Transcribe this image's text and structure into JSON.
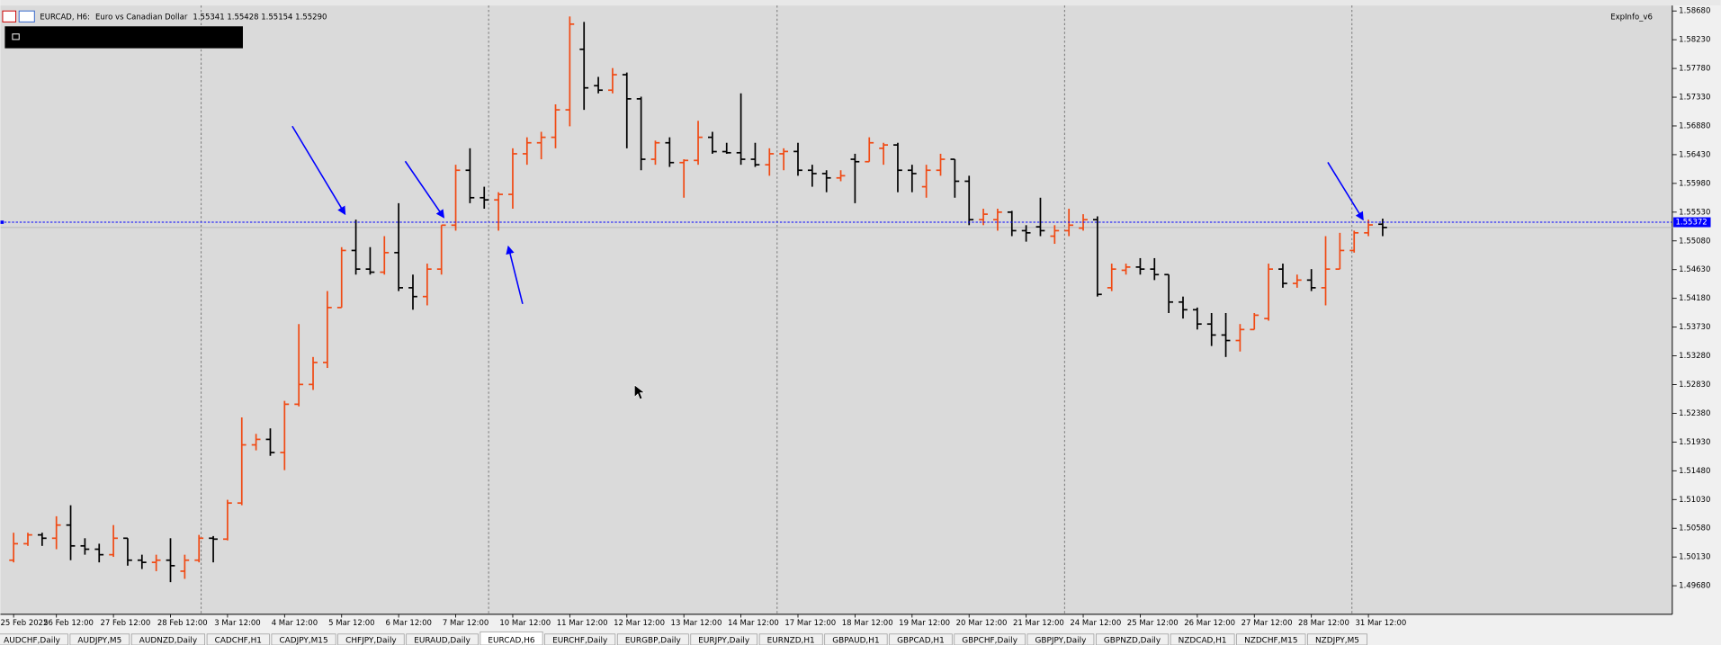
{
  "header": {
    "symbol": "EURCAD, H6:",
    "description": "Euro vs Canadian Dollar",
    "quote": "1.55341 1.55428 1.55154 1.55290",
    "indicator": "ExpInfo_v6"
  },
  "chart_data": {
    "type": "ohlc",
    "categories": [
      "25 Feb 2025",
      null,
      null,
      "26 Feb 12:00",
      null,
      null,
      null,
      "27 Feb 12:00",
      null,
      null,
      null,
      "28 Feb 12:00",
      null,
      null,
      null,
      "3 Mar 12:00",
      null,
      null,
      null,
      "4 Mar 12:00",
      null,
      null,
      null,
      "5 Mar 12:00",
      null,
      null,
      null,
      "6 Mar 12:00",
      null,
      null,
      null,
      "7 Mar 12:00",
      null,
      null,
      null,
      "10 Mar 12:00",
      null,
      null,
      null,
      "11 Mar 12:00",
      null,
      null,
      null,
      "12 Mar 12:00",
      null,
      null,
      null,
      "13 Mar 12:00",
      null,
      null,
      null,
      "14 Mar 12:00",
      null,
      null,
      null,
      "17 Mar 12:00",
      null,
      null,
      null,
      "18 Mar 12:00",
      null,
      null,
      null,
      "19 Mar 12:00",
      null,
      null,
      null,
      "20 Mar 12:00",
      null,
      null,
      null,
      "21 Mar 12:00",
      null,
      null,
      null,
      "24 Mar 12:00",
      null,
      null,
      null,
      "25 Mar 12:00",
      null,
      null,
      null,
      "26 Mar 12:00",
      null,
      null,
      null,
      "27 Mar 12:00",
      null,
      null,
      null,
      "28 Mar 12:00",
      null,
      null,
      null,
      "31 Mar 12:00",
      null
    ],
    "open": [
      1.5008,
      1.50338,
      1.50476,
      1.50424,
      1.5063,
      1.50304,
      1.50252,
      1.50166,
      1.50424,
      1.5008,
      1.50046,
      1.5008,
      1.49908,
      1.5008,
      1.50424,
      1.5041,
      1.50975,
      1.51886,
      1.51972,
      1.51766,
      1.52522,
      1.52832,
      1.53176,
      1.54036,
      1.5493,
      1.54638,
      1.5459,
      1.54896,
      1.54346,
      1.54208,
      1.54638,
      1.55326,
      1.56186,
      1.55756,
      1.55722,
      1.55808,
      1.56444,
      1.56616,
      1.56702,
      1.57132,
      1.5808,
      1.5751,
      1.5744,
      1.57682,
      1.57304,
      1.56358,
      1.56616,
      1.56306,
      1.5634,
      1.56702,
      1.56478,
      1.5646,
      1.56358,
      1.56272,
      1.56444,
      1.5648,
      1.56186,
      1.56134,
      1.56066,
      1.56358,
      1.5632,
      1.5653,
      1.56582,
      1.56186,
      1.55928,
      1.56186,
      1.56358,
      1.56014,
      1.55412,
      1.55412,
      1.5553,
      1.5524,
      1.553,
      1.55154,
      1.5524,
      1.5528,
      1.55412,
      1.54346,
      1.5462,
      1.5467,
      1.54638,
      1.54552,
      1.54122,
      1.54002,
      1.53778,
      1.53606,
      1.5352,
      1.53692,
      1.53864,
      1.54638,
      1.54414,
      1.54466,
      1.54346,
      1.54638,
      1.5493,
      1.55206,
      1.55341
    ],
    "high": [
      1.5051,
      1.5051,
      1.5051,
      1.50768,
      1.5094,
      1.50424,
      1.50338,
      1.5063,
      1.50424,
      1.50166,
      1.50166,
      1.50424,
      1.50166,
      1.50476,
      1.50458,
      1.51026,
      1.52316,
      1.52058,
      1.52144,
      1.52574,
      1.53778,
      1.53262,
      1.54294,
      1.54982,
      1.55412,
      1.54982,
      1.55154,
      1.5567,
      1.54552,
      1.54724,
      1.55326,
      1.56272,
      1.5653,
      1.55928,
      1.55842,
      1.5653,
      1.56702,
      1.56788,
      1.57218,
      1.58594,
      1.58508,
      1.57648,
      1.57786,
      1.57716,
      1.57338,
      1.5665,
      1.56702,
      1.56358,
      1.5696,
      1.56788,
      1.56616,
      1.5739,
      1.56616,
      1.5653,
      1.5653,
      1.56616,
      1.56272,
      1.56186,
      1.56186,
      1.56444,
      1.56702,
      1.56616,
      1.56616,
      1.56272,
      1.56272,
      1.56444,
      1.56358,
      1.561,
      1.55584,
      1.55584,
      1.5555,
      1.55326,
      1.55756,
      1.55326,
      1.55584,
      1.55498,
      1.55464,
      1.54724,
      1.54724,
      1.5481,
      1.5481,
      1.54552,
      1.54208,
      1.54036,
      1.5395,
      1.5395,
      1.53778,
      1.5395,
      1.54724,
      1.54724,
      1.54552,
      1.54638,
      1.55154,
      1.55206,
      1.5524,
      1.55412,
      1.55428
    ],
    "low": [
      1.50046,
      1.50304,
      1.50304,
      1.50252,
      1.5008,
      1.50166,
      1.50046,
      1.50132,
      1.49994,
      1.49942,
      1.49908,
      1.49736,
      1.49788,
      1.50046,
      1.50046,
      1.5039,
      1.5094,
      1.518,
      1.51714,
      1.5149,
      1.52488,
      1.52746,
      1.5309,
      1.54036,
      1.54552,
      1.54552,
      1.54552,
      1.54294,
      1.54002,
      1.5407,
      1.54552,
      1.5524,
      1.5567,
      1.55584,
      1.5524,
      1.55584,
      1.56272,
      1.56358,
      1.5653,
      1.56874,
      1.57132,
      1.5739,
      1.5739,
      1.5653,
      1.56186,
      1.56272,
      1.56238,
      1.55756,
      1.56272,
      1.56444,
      1.56444,
      1.56272,
      1.56238,
      1.561,
      1.56186,
      1.561,
      1.55928,
      1.55842,
      1.56014,
      1.5567,
      1.5632,
      1.56272,
      1.55842,
      1.55842,
      1.55756,
      1.561,
      1.55756,
      1.55326,
      1.55326,
      1.5524,
      1.55154,
      1.55068,
      1.55154,
      1.55034,
      1.55154,
      1.5524,
      1.54208,
      1.54294,
      1.54552,
      1.54552,
      1.54466,
      1.5395,
      1.53864,
      1.53692,
      1.53434,
      1.53262,
      1.53348,
      1.53692,
      1.5383,
      1.54346,
      1.54346,
      1.54294,
      1.5407,
      1.54638,
      1.54896,
      1.55154,
      1.55154
    ],
    "close": [
      1.50338,
      1.50476,
      1.50424,
      1.5063,
      1.50304,
      1.50252,
      1.50166,
      1.50424,
      1.5008,
      1.50046,
      1.5008,
      1.49994,
      1.5008,
      1.50424,
      1.5041,
      1.50975,
      1.51886,
      1.51972,
      1.51766,
      1.52522,
      1.52832,
      1.53176,
      1.54036,
      1.5493,
      1.54638,
      1.5459,
      1.54896,
      1.54346,
      1.54208,
      1.54638,
      1.55326,
      1.56186,
      1.55756,
      1.55722,
      1.55808,
      1.56444,
      1.56616,
      1.56702,
      1.57132,
      1.58474,
      1.57476,
      1.5744,
      1.57682,
      1.57304,
      1.56358,
      1.56616,
      1.56306,
      1.5634,
      1.56702,
      1.56478,
      1.5646,
      1.56358,
      1.56272,
      1.56444,
      1.5648,
      1.56186,
      1.56134,
      1.56066,
      1.561,
      1.5632,
      1.56616,
      1.56582,
      1.56186,
      1.56134,
      1.56186,
      1.56358,
      1.56014,
      1.55412,
      1.55498,
      1.5553,
      1.5524,
      1.55206,
      1.5524,
      1.5524,
      1.55326,
      1.55412,
      1.54242,
      1.54638,
      1.5467,
      1.54638,
      1.54552,
      1.54122,
      1.54002,
      1.53778,
      1.53606,
      1.5352,
      1.53692,
      1.53916,
      1.54638,
      1.54414,
      1.54466,
      1.54346,
      1.54638,
      1.5493,
      1.55206,
      1.5533,
      1.5529
    ],
    "up_color": "#f04a14",
    "down_color": "#000000",
    "ylim": [
      1.49233,
      1.58766
    ],
    "yticks": [
      {
        "value": 1.5868,
        "label": "1.58680"
      },
      {
        "value": 1.5823,
        "label": "1.58230"
      },
      {
        "value": 1.5778,
        "label": "1.57780"
      },
      {
        "value": 1.5733,
        "label": "1.57330"
      },
      {
        "value": 1.5688,
        "label": "1.56880"
      },
      {
        "value": 1.5643,
        "label": "1.56430"
      },
      {
        "value": 1.5598,
        "label": "1.55980"
      },
      {
        "value": 1.5553,
        "label": "1.55530"
      },
      {
        "value": 1.5508,
        "label": "1.55080"
      },
      {
        "value": 1.5463,
        "label": "1.54630"
      },
      {
        "value": 1.5418,
        "label": "1.54180"
      },
      {
        "value": 1.5373,
        "label": "1.53730"
      },
      {
        "value": 1.5328,
        "label": "1.53280"
      },
      {
        "value": 1.5283,
        "label": "1.52830"
      },
      {
        "value": 1.5238,
        "label": "1.52380"
      },
      {
        "value": 1.5193,
        "label": "1.51930"
      },
      {
        "value": 1.5148,
        "label": "1.51480"
      },
      {
        "value": 1.5103,
        "label": "1.51030"
      },
      {
        "value": 1.5058,
        "label": "1.50580"
      },
      {
        "value": 1.5013,
        "label": "1.50130"
      },
      {
        "value": 1.4968,
        "label": "1.49680"
      }
    ],
    "hline": 1.55372,
    "hline_color": "#0000ff"
  },
  "tabs": [
    "AUDCHF,Daily",
    "AUDJPY,M5",
    "AUDNZD,Daily",
    "CADCHF,H1",
    "CADJPY,M15",
    "CHFJPY,Daily",
    "EURAUD,Daily",
    "EURCAD,H6",
    "EURCHF,Daily",
    "EURGBP,Daily",
    "EURJPY,Daily",
    "EURNZD,H1",
    "GBPAUD,H1",
    "GBPCAD,H1",
    "GBPCHF,Daily",
    "GBPJPY,Daily",
    "GBPNZD,Daily",
    "NZDCAD,H1",
    "NZDCHF,M15",
    "NZDJPY,M5"
  ],
  "active_tab": 7
}
